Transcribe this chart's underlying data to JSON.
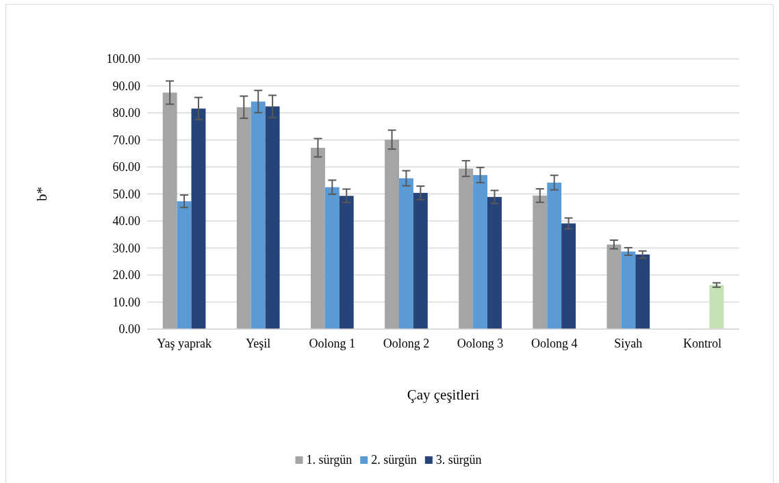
{
  "chart_data": {
    "type": "bar",
    "xlabel": "Çay çeşitleri",
    "ylabel": "b*",
    "categories": [
      "Yaş yaprak",
      "Yeşil",
      "Oolong 1",
      "Oolong 2",
      "Oolong 3",
      "Oolong 4",
      "Siyah",
      "Kontrol"
    ],
    "series": [
      {
        "name": "1. sürgün",
        "color": "#a5a5a5",
        "values": [
          87.5,
          82.1,
          67.1,
          70.1,
          59.4,
          49.4,
          31.3,
          null
        ],
        "errors": [
          4.3,
          4.1,
          3.4,
          3.5,
          2.9,
          2.5,
          1.6,
          null
        ]
      },
      {
        "name": "2. sürgün",
        "color": "#5b9bd5",
        "values": [
          47.3,
          84.2,
          52.5,
          55.8,
          57.0,
          54.2,
          28.7,
          null
        ],
        "errors": [
          2.3,
          4.1,
          2.6,
          2.8,
          2.8,
          2.7,
          1.4,
          null
        ]
      },
      {
        "name": "3. sürgün",
        "color": "#264478",
        "colors": [
          "#264478",
          "#264478",
          "#264478",
          "#264478",
          "#264478",
          "#264478",
          "#264478",
          "#c5e0b4"
        ],
        "values": [
          81.6,
          82.4,
          49.3,
          50.4,
          48.9,
          39.1,
          27.6,
          16.3
        ],
        "errors": [
          4.1,
          4.1,
          2.5,
          2.5,
          2.4,
          2.0,
          1.3,
          0.8
        ]
      }
    ],
    "ylim": [
      0,
      100
    ],
    "yticks": [
      {
        "value": 0,
        "label": "0.00"
      },
      {
        "value": 10,
        "label": "10.00"
      },
      {
        "value": 20,
        "label": "20.00"
      },
      {
        "value": 30,
        "label": "30.00"
      },
      {
        "value": 40,
        "label": "40.00"
      },
      {
        "value": 50,
        "label": "50.00"
      },
      {
        "value": 60,
        "label": "60.00"
      },
      {
        "value": 70,
        "label": "70.00"
      },
      {
        "value": 80,
        "label": "80.00"
      },
      {
        "value": 90,
        "label": "90.00"
      },
      {
        "value": 100,
        "label": "100.00"
      }
    ],
    "grid": "y",
    "legend": "bottom"
  }
}
